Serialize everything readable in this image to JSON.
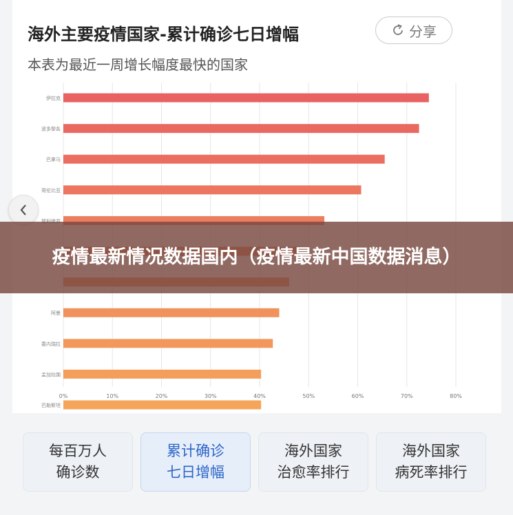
{
  "header": {
    "title": "海外主要疫情国家-累计确诊七日增幅",
    "subtitle": "本表为最近一周增长幅度最快的国家",
    "share_label": "分享",
    "share_icon": "share-icon"
  },
  "banner": {
    "text": "疫情最新情况数据国内（疫情最新中国数据消息）"
  },
  "tabs": [
    {
      "label": "每百万人\n确诊数"
    },
    {
      "label": "累计确诊\n七日增幅",
      "active": true
    },
    {
      "label": "海外国家\n治愈率排行"
    },
    {
      "label": "海外国家\n病死率排行"
    }
  ],
  "colors": {
    "bar_top": "#e86262",
    "bar_bottom": "#f5a55a",
    "grid": "#e6e6e6",
    "active_tab": "#2e66c7"
  },
  "chart_data": {
    "type": "bar",
    "orientation": "horizontal",
    "title": "",
    "xlabel": "",
    "ylabel": "",
    "xlim": [
      0,
      0.8
    ],
    "x_ticks": [
      "0%",
      "10%",
      "20%",
      "30%",
      "40%",
      "50%",
      "60%",
      "70%",
      "80%"
    ],
    "categories": [
      "伊拉克",
      "波多黎各",
      "巴拿马",
      "哥伦比亚",
      "玻利维亚",
      "",
      "",
      "阿曼",
      "委内瑞拉",
      "孟加拉国",
      "巴勒斯坦"
    ],
    "values": [
      0.745,
      0.725,
      0.655,
      0.607,
      0.532,
      0.48,
      0.46,
      0.44,
      0.427,
      0.403,
      0.403
    ],
    "grid": true
  }
}
